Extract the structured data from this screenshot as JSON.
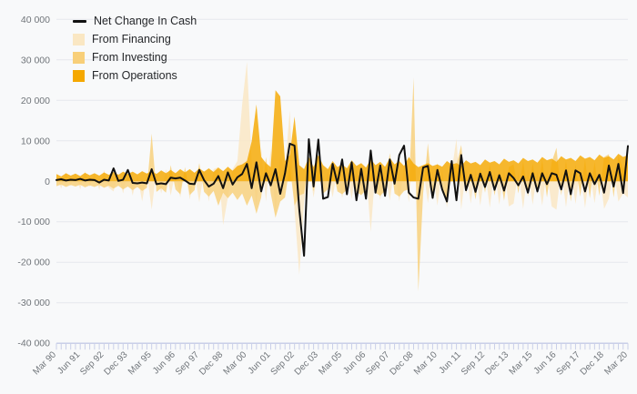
{
  "legend": {
    "items": [
      {
        "label": "Net Change In Cash",
        "type": "line",
        "color": "#111111"
      },
      {
        "label": "From Financing",
        "type": "area",
        "color": "#fae7c3"
      },
      {
        "label": "From Investing",
        "type": "area",
        "color": "#f8cf79"
      },
      {
        "label": "From Operations",
        "type": "area",
        "color": "#f5a800"
      }
    ]
  },
  "colors": {
    "background": "#f8f9fa",
    "grid": "#e6e8ec",
    "axis_line": "#c9cfe8",
    "tick_text": "#70757a",
    "net_line": "#111111"
  },
  "chart_data": {
    "type": "area",
    "title": "",
    "xlabel": "",
    "ylabel": "",
    "ylim": [
      -40000,
      40000
    ],
    "grid": true,
    "legend_position": "top-left",
    "n_points": 121,
    "x_start": "Mar 90",
    "x_end": "Mar 20",
    "x_tick_label_every": 5,
    "x_tick_labels": [
      "Mar 90",
      "Jun 91",
      "Sep 92",
      "Dec 93",
      "Mar 95",
      "Jun 96",
      "Sep 97",
      "Dec 98",
      "Mar 00",
      "Jun 01",
      "Sep 02",
      "Dec 03",
      "Mar 05",
      "Jun 06",
      "Sep 07",
      "Dec 08",
      "Mar 10",
      "Jun 11",
      "Sep 12",
      "Dec 13",
      "Mar 15",
      "Jun 16",
      "Sep 17",
      "Dec 18",
      "Mar 20"
    ],
    "y_ticks": [
      40000,
      30000,
      20000,
      10000,
      0,
      -10000,
      -20000,
      -30000,
      -40000
    ],
    "y_tick_labels": [
      "40 000",
      "30 000",
      "20 000",
      "10 000",
      "0",
      "-10 000",
      "-20 000",
      "-30 000",
      "-40 000"
    ],
    "series": [
      {
        "name": "From Financing",
        "type": "area",
        "color": "#fae7c3",
        "values": [
          1500,
          -1800,
          2200,
          -1200,
          1800,
          -2000,
          2500,
          -1400,
          2000,
          -2200,
          2800,
          -1600,
          -2500,
          2000,
          -3000,
          2500,
          -3500,
          1500,
          -5000,
          2000,
          -7000,
          2500,
          -3000,
          3000,
          -3500,
          2500,
          -4000,
          3000,
          -4500,
          2000,
          -5200,
          2600,
          -5000,
          3000,
          3500,
          -10800,
          -4000,
          3000,
          5000,
          19000,
          29500,
          5000,
          -6000,
          8000,
          -5000,
          8000,
          -8000,
          6000,
          3000,
          17500,
          -7000,
          -23100,
          -5000,
          4000,
          -4000,
          3500,
          -3500,
          2500,
          -4000,
          3000,
          -4200,
          2600,
          -4400,
          3200,
          -3600,
          2800,
          -12500,
          3000,
          -4600,
          2800,
          -4800,
          3400,
          -5000,
          3600,
          -5200,
          8000,
          -8000,
          3500,
          -5400,
          2800,
          -6000,
          3000,
          -6500,
          2500,
          10500,
          -7000,
          2800,
          -5500,
          3000,
          -6000,
          2500,
          -6500,
          2800,
          -5800,
          3200,
          -6200,
          -5500,
          2500,
          -6800,
          3000,
          -5800,
          2600,
          -6000,
          2800,
          -6200,
          -7000,
          3000,
          -6400,
          2800,
          -5600,
          3200,
          -6600,
          2600,
          -5400,
          3000,
          -6800,
          -4300,
          2800,
          -5000,
          -3000,
          -4000
        ]
      },
      {
        "name": "From Investing",
        "type": "area",
        "color": "#f8cf79",
        "values": [
          -1200,
          -800,
          -1400,
          -900,
          -1300,
          -850,
          -1500,
          -1000,
          -1400,
          -900,
          -1600,
          -1100,
          -1800,
          -1100,
          -2000,
          -1300,
          -2200,
          -1400,
          -2400,
          -1600,
          11800,
          -2600,
          -1700,
          -2800,
          4000,
          -2000,
          -3200,
          3500,
          -3400,
          -2200,
          4500,
          -2600,
          -3800,
          -2400,
          -6000,
          -2800,
          -4200,
          -2800,
          -4600,
          -3000,
          -6000,
          -3500,
          -8000,
          -4000,
          6000,
          -3000,
          -9000,
          -5000,
          -4000,
          4000,
          -6000,
          -3500,
          -3000,
          5000,
          -2500,
          5500,
          -3000,
          -2000,
          3500,
          -2500,
          -3200,
          -2100,
          3800,
          -2600,
          -3400,
          -2200,
          4000,
          -2800,
          -3600,
          -2300,
          7000,
          -3000,
          -3800,
          -2400,
          -2000,
          25600,
          -27200,
          -3000,
          9400,
          -3500,
          4500,
          -2500,
          -5500,
          3000,
          4000,
          9000,
          -3000,
          2500,
          -4500,
          3200,
          -2800,
          4200,
          -3500,
          2800,
          -4800,
          3500,
          4200,
          -3000,
          5000,
          -3800,
          4500,
          -3200,
          5500,
          -4000,
          4800,
          8300,
          -3500,
          5200,
          -5000,
          4200,
          -3800,
          5500,
          -4200,
          4800,
          -3600,
          6000,
          6700,
          -4000,
          6500,
          3000,
          5000
        ]
      },
      {
        "name": "From Operations",
        "type": "area",
        "color": "#f5a800",
        "values": [
          1800,
          1200,
          2000,
          1400,
          1900,
          1300,
          2100,
          1500,
          2000,
          1400,
          2200,
          1600,
          2300,
          1600,
          2400,
          1800,
          2400,
          1700,
          2500,
          1900,
          2600,
          1800,
          2700,
          2000,
          2800,
          2000,
          3000,
          2200,
          3000,
          2100,
          3200,
          2400,
          3200,
          2300,
          3400,
          2500,
          3600,
          2600,
          3800,
          4200,
          5000,
          9900,
          19000,
          6000,
          4500,
          3500,
          22500,
          21000,
          5000,
          6500,
          16000,
          4000,
          3000,
          6000,
          3500,
          6500,
          4000,
          3000,
          5000,
          3500,
          4200,
          3200,
          5200,
          3800,
          4500,
          3400,
          5500,
          4000,
          4800,
          3600,
          5800,
          4200,
          5000,
          3800,
          6000,
          4400,
          3500,
          4000,
          4500,
          3800,
          4200,
          3600,
          5000,
          4200,
          4500,
          3800,
          5200,
          4400,
          4800,
          4000,
          5400,
          4600,
          5000,
          4200,
          5600,
          4800,
          5200,
          4400,
          5800,
          5000,
          5400,
          4600,
          6000,
          5200,
          5600,
          4800,
          6200,
          5400,
          5800,
          5000,
          6400,
          5600,
          6000,
          5200,
          6600,
          5800,
          6200,
          5400,
          6800,
          6000,
          6500
        ]
      },
      {
        "name": "Net Change In Cash",
        "type": "line",
        "color": "#111111",
        "values": [
          300,
          500,
          200,
          400,
          300,
          600,
          200,
          400,
          300,
          -300,
          400,
          200,
          3200,
          100,
          400,
          2800,
          -400,
          -500,
          -300,
          -500,
          3000,
          -700,
          -500,
          -700,
          900,
          700,
          900,
          200,
          -600,
          -700,
          2800,
          300,
          -1300,
          -600,
          1300,
          -1700,
          2200,
          -800,
          1000,
          1800,
          4300,
          -1700,
          4700,
          -2500,
          2000,
          -1000,
          3000,
          -3100,
          2000,
          9300,
          8800,
          -7000,
          -18400,
          10400,
          -1300,
          10300,
          -4300,
          -3900,
          4300,
          -500,
          5400,
          -3200,
          4700,
          -4700,
          3100,
          -4300,
          7600,
          -2800,
          3900,
          -3600,
          5400,
          -600,
          6500,
          8800,
          -2800,
          -4000,
          -4300,
          3400,
          3800,
          -4100,
          2800,
          -2000,
          -5000,
          5000,
          -4700,
          6500,
          -2200,
          1600,
          -2600,
          1900,
          -1400,
          2300,
          -2100,
          1500,
          -2300,
          2000,
          800,
          -1000,
          1200,
          -2800,
          2000,
          -2500,
          2000,
          -700,
          2000,
          1600,
          -2000,
          2700,
          -3200,
          2700,
          2000,
          -2500,
          2000,
          -700,
          1600,
          -2800,
          3900,
          -1300,
          4300,
          -2900,
          8700
        ]
      }
    ]
  }
}
